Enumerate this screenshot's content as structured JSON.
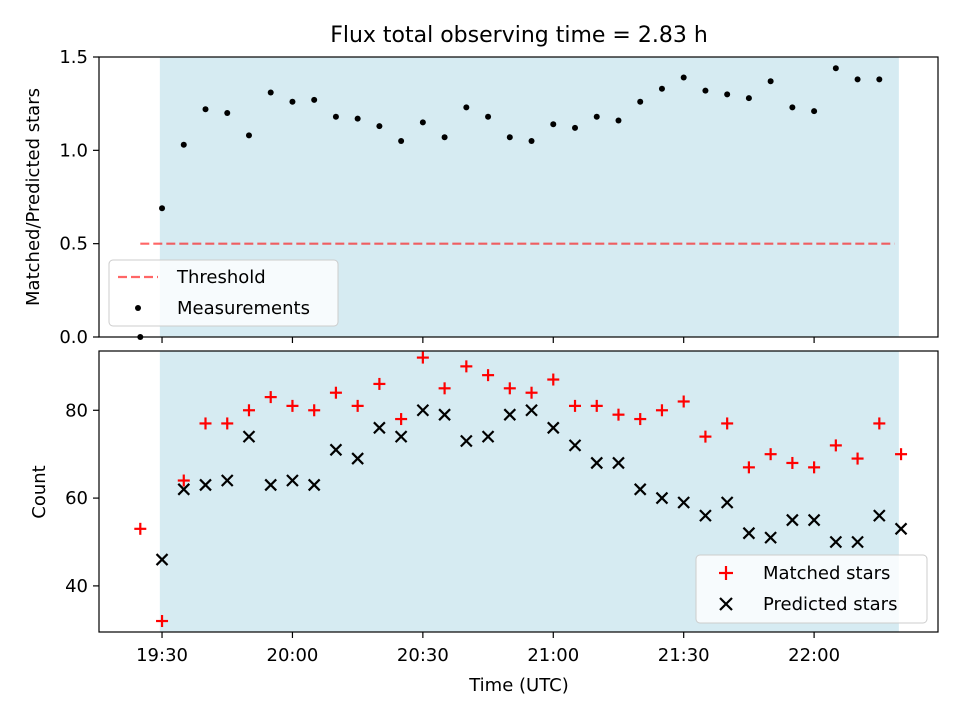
{
  "chart_data": {
    "title": "Flux total observing time = 2.83 h",
    "xlabel": "Time (UTC)",
    "x_ticks": [
      {
        "minutes": 0,
        "label": "19:30"
      },
      {
        "minutes": 30,
        "label": "20:00"
      },
      {
        "minutes": 60,
        "label": "20:30"
      },
      {
        "minutes": 90,
        "label": "21:00"
      },
      {
        "minutes": 120,
        "label": "21:30"
      },
      {
        "minutes": 150,
        "label": "22:00"
      }
    ],
    "x_unit_note": "x values are minutes after 19:30 UTC",
    "xlim": [
      -14.5,
      178.5
    ],
    "shaded_span": {
      "start": -0.5,
      "end": 169.5,
      "color": "#add8e6"
    },
    "top": {
      "type": "scatter",
      "ylabel": "Matched/Predicted stars",
      "ylim": [
        0,
        1.5
      ],
      "yticks": [
        0.0,
        0.5,
        1.0,
        1.5
      ],
      "ytick_labels": [
        "0.0",
        "0.5",
        "1.0",
        "1.5"
      ],
      "threshold": {
        "name": "Threshold",
        "value": 0.5,
        "x_start": -5,
        "x_end": 168.5,
        "color": "#ff0000",
        "style": "dashed"
      },
      "legend_position": "lower-left",
      "series": [
        {
          "name": "Measurements",
          "color": "#000000",
          "marker": "dot",
          "x": [
            -5,
            0,
            5,
            10,
            15,
            20,
            25,
            30,
            35,
            40,
            45,
            50,
            55,
            60,
            65,
            70,
            75,
            80,
            85,
            90,
            95,
            100,
            105,
            110,
            115,
            120,
            125,
            130,
            135,
            140,
            145,
            150,
            155,
            160,
            165
          ],
          "y": [
            0.0,
            0.69,
            1.03,
            1.22,
            1.2,
            1.08,
            1.31,
            1.26,
            1.27,
            1.18,
            1.17,
            1.13,
            1.05,
            1.15,
            1.07,
            1.23,
            1.18,
            1.07,
            1.05,
            1.14,
            1.12,
            1.18,
            1.16,
            1.26,
            1.33,
            1.39,
            1.32,
            1.3,
            1.28,
            1.37,
            1.23,
            1.21,
            1.44,
            1.38,
            1.38
          ]
        }
      ]
    },
    "bottom": {
      "type": "scatter",
      "ylabel": "Count",
      "ylim": [
        29.5,
        93.5
      ],
      "yticks": [
        40,
        60,
        80
      ],
      "ytick_labels": [
        "40",
        "60",
        "80"
      ],
      "legend_position": "lower-right",
      "series": [
        {
          "name": "Matched stars",
          "color": "#ff0000",
          "marker": "plus",
          "x": [
            -5,
            0,
            5,
            10,
            15,
            20,
            25,
            30,
            35,
            40,
            45,
            50,
            55,
            60,
            65,
            70,
            75,
            80,
            85,
            90,
            95,
            100,
            105,
            110,
            115,
            120,
            125,
            130,
            135,
            140,
            145,
            150,
            155,
            160,
            165,
            170
          ],
          "y": [
            53,
            32,
            64,
            77,
            77,
            80,
            83,
            81,
            80,
            84,
            81,
            86,
            78,
            92,
            85,
            90,
            88,
            85,
            84,
            87,
            81,
            81,
            79,
            78,
            80,
            82,
            74,
            77,
            67,
            70,
            68,
            67,
            72,
            69,
            77,
            70
          ]
        },
        {
          "name": "Predicted stars",
          "color": "#000000",
          "marker": "x",
          "x": [
            0,
            5,
            10,
            15,
            20,
            25,
            30,
            35,
            40,
            45,
            50,
            55,
            60,
            65,
            70,
            75,
            80,
            85,
            90,
            95,
            100,
            105,
            110,
            115,
            120,
            125,
            130,
            135,
            140,
            145,
            150,
            155,
            160,
            165,
            170
          ],
          "y": [
            46,
            62,
            63,
            64,
            74,
            63,
            64,
            63,
            71,
            69,
            76,
            74,
            80,
            79,
            73,
            74,
            79,
            80,
            76,
            72,
            68,
            68,
            62,
            60,
            59,
            56,
            59,
            52,
            51,
            55,
            55,
            50,
            50,
            56,
            53
          ]
        }
      ]
    }
  }
}
